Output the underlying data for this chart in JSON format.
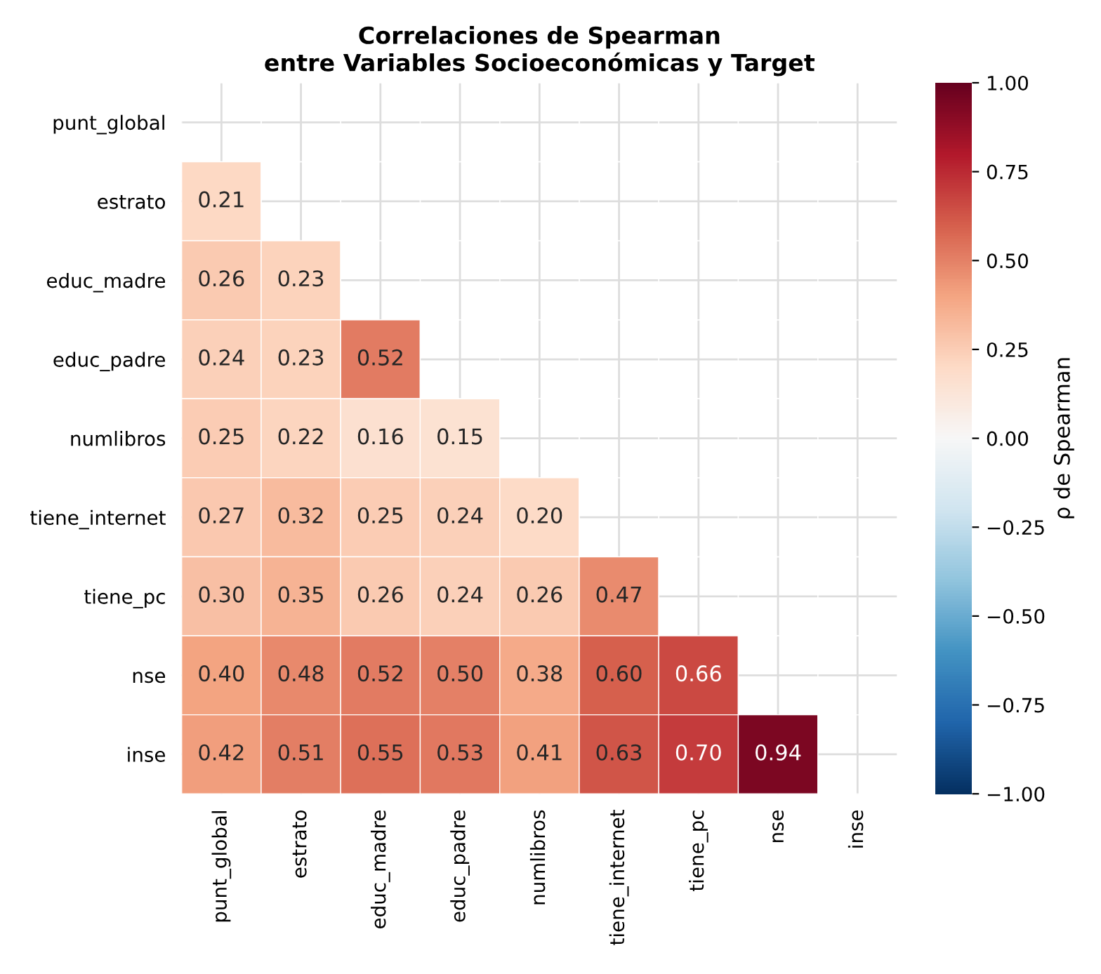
{
  "chart_data": {
    "type": "heatmap",
    "title": "Correlaciones de Spearman\nentre Variables Socioeconómicas y Target",
    "categories": [
      "punt_global",
      "estrato",
      "educ_madre",
      "educ_padre",
      "numlibros",
      "tiene_internet",
      "tiene_pc",
      "nse",
      "inse"
    ],
    "y_categories": [
      "punt_global",
      "estrato",
      "educ_madre",
      "educ_padre",
      "numlibros",
      "tiene_internet",
      "tiene_pc",
      "nse",
      "inse"
    ],
    "cells": [
      [
        null,
        null,
        null,
        null,
        null,
        null,
        null,
        null,
        null
      ],
      [
        0.21,
        null,
        null,
        null,
        null,
        null,
        null,
        null,
        null
      ],
      [
        0.26,
        0.23,
        null,
        null,
        null,
        null,
        null,
        null,
        null
      ],
      [
        0.24,
        0.23,
        0.52,
        null,
        null,
        null,
        null,
        null,
        null
      ],
      [
        0.25,
        0.22,
        0.16,
        0.15,
        null,
        null,
        null,
        null,
        null
      ],
      [
        0.27,
        0.32,
        0.25,
        0.24,
        0.2,
        null,
        null,
        null,
        null
      ],
      [
        0.3,
        0.35,
        0.26,
        0.24,
        0.26,
        0.47,
        null,
        null,
        null
      ],
      [
        0.4,
        0.48,
        0.52,
        0.5,
        0.38,
        0.6,
        0.66,
        null,
        null
      ],
      [
        0.42,
        0.51,
        0.55,
        0.53,
        0.41,
        0.63,
        0.7,
        0.94,
        null
      ]
    ],
    "cell_labels": [
      [
        null,
        null,
        null,
        null,
        null,
        null,
        null,
        null,
        null
      ],
      [
        "0.21",
        null,
        null,
        null,
        null,
        null,
        null,
        null,
        null
      ],
      [
        "0.26",
        "0.23",
        null,
        null,
        null,
        null,
        null,
        null,
        null
      ],
      [
        "0.24",
        "0.23",
        "0.52",
        null,
        null,
        null,
        null,
        null,
        null
      ],
      [
        "0.25",
        "0.22",
        "0.16",
        "0.15",
        null,
        null,
        null,
        null,
        null
      ],
      [
        "0.27",
        "0.32",
        "0.25",
        "0.24",
        "0.20",
        null,
        null,
        null,
        null
      ],
      [
        "0.30",
        "0.35",
        "0.26",
        "0.24",
        "0.26",
        "0.47",
        null,
        null,
        null
      ],
      [
        "0.40",
        "0.48",
        "0.52",
        "0.50",
        "0.38",
        "0.60",
        "0.66",
        null,
        null
      ],
      [
        "0.42",
        "0.51",
        "0.55",
        "0.53",
        "0.41",
        "0.63",
        "0.70",
        "0.94",
        null
      ]
    ],
    "clim": [
      -1,
      1
    ],
    "cticks": [
      {
        "value": -1,
        "label": "−1.00"
      },
      {
        "value": -0.75,
        "label": "−0.75"
      },
      {
        "value": -0.5,
        "label": "−0.50"
      },
      {
        "value": -0.25,
        "label": "−0.25"
      },
      {
        "value": 0,
        "label": "0.00"
      },
      {
        "value": 0.25,
        "label": "0.25"
      },
      {
        "value": 0.5,
        "label": "0.50"
      },
      {
        "value": 0.75,
        "label": "0.75"
      },
      {
        "value": 1,
        "label": "1.00"
      }
    ],
    "clabel": "ρ de Spearman",
    "data_labels": true,
    "grid": true
  }
}
